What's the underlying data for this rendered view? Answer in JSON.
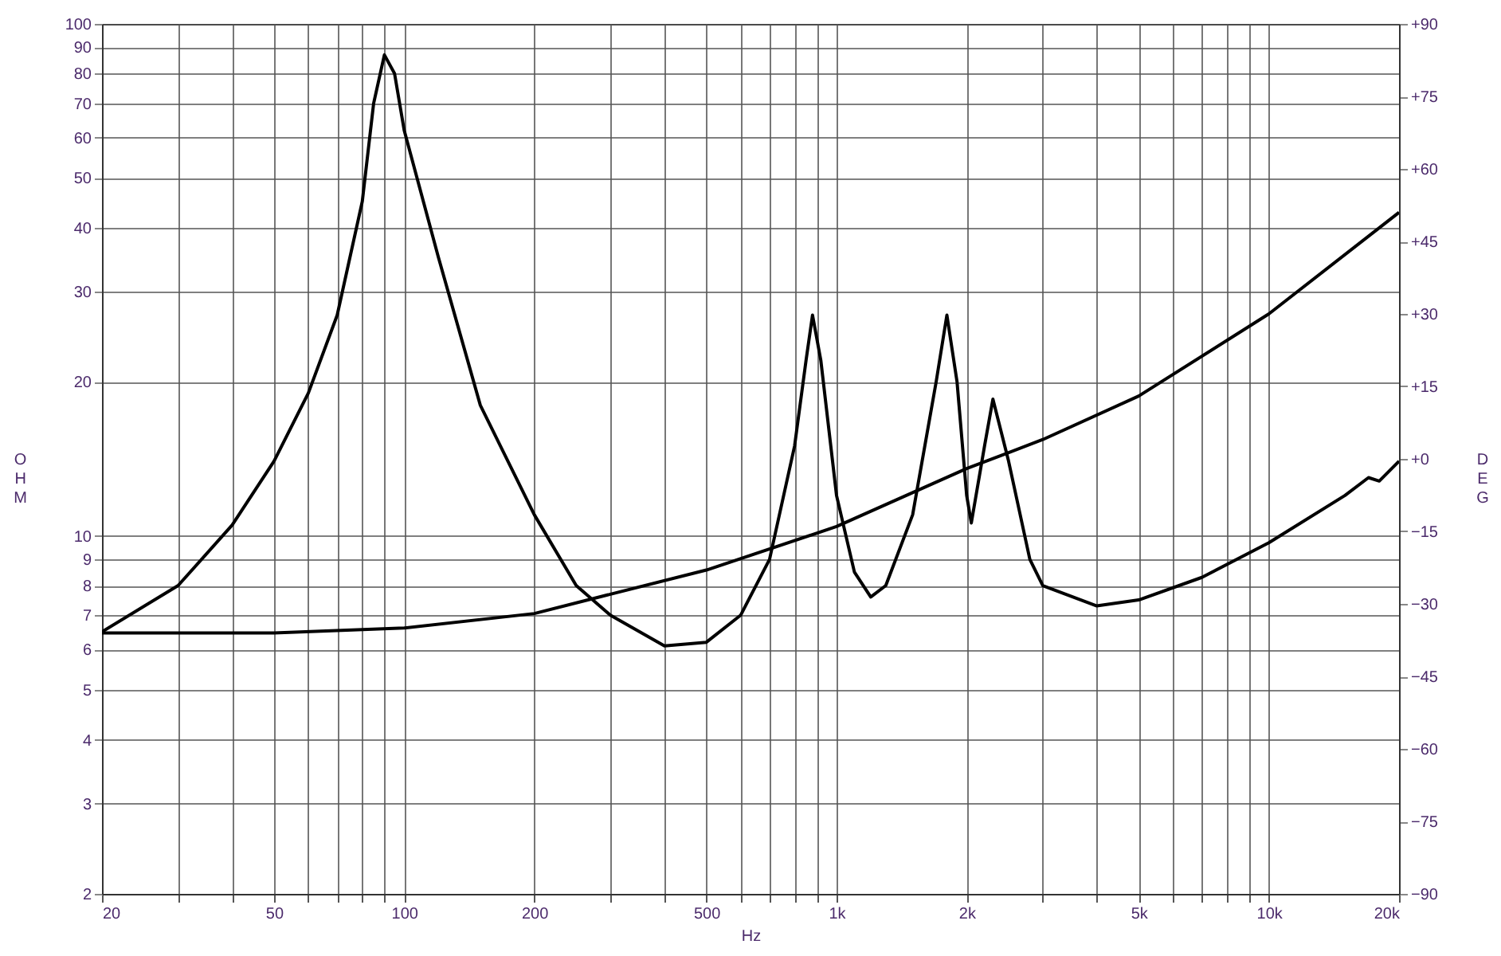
{
  "chart_data": {
    "type": "line",
    "xlabel": "Hz",
    "ylabel": "OHM",
    "y2label": "DEG",
    "log": "xy",
    "grid": true,
    "marker": "none",
    "line_style": "solid",
    "xlim": [
      20,
      20000
    ],
    "xticks": [
      20,
      {
        "value": 30,
        "label": null
      },
      {
        "value": 40,
        "label": null
      },
      50,
      {
        "value": 60,
        "label": null
      },
      {
        "value": 70,
        "label": null
      },
      {
        "value": 80,
        "label": null
      },
      {
        "value": 90,
        "label": null
      },
      100,
      200,
      {
        "value": 300,
        "label": null
      },
      {
        "value": 400,
        "label": null
      },
      500,
      {
        "value": 600,
        "label": null
      },
      {
        "value": 700,
        "label": null
      },
      {
        "value": 800,
        "label": null
      },
      {
        "value": 900,
        "label": null
      },
      {
        "value": 1000,
        "label": "1k"
      },
      {
        "value": 2000,
        "label": "2k"
      },
      {
        "value": 3000,
        "label": null
      },
      {
        "value": 4000,
        "label": null
      },
      {
        "value": 5000,
        "label": "5k"
      },
      {
        "value": 6000,
        "label": null
      },
      {
        "value": 7000,
        "label": null
      },
      {
        "value": 8000,
        "label": null
      },
      {
        "value": 9000,
        "label": null
      },
      {
        "value": 10000,
        "label": "10k"
      },
      {
        "value": 20000,
        "label": "20k"
      }
    ],
    "ylim": [
      2,
      100
    ],
    "yticks": [
      2,
      3,
      4,
      5,
      6,
      7,
      8,
      9,
      10,
      20,
      30,
      40,
      50,
      60,
      70,
      80,
      90,
      100
    ],
    "y2lim": [
      -90,
      90
    ],
    "y2ticks": [
      -90,
      -75,
      -60,
      -45,
      -30,
      -15,
      {
        "value": 0,
        "label": "+0"
      },
      {
        "value": 15,
        "label": "+15"
      },
      {
        "value": 30,
        "label": "+30"
      },
      {
        "value": 45,
        "label": "+45"
      },
      {
        "value": 60,
        "label": "+60"
      },
      {
        "value": 75,
        "label": "+75"
      },
      {
        "value": 90,
        "label": "+90"
      }
    ],
    "series": [
      {
        "color": "#000000",
        "x": [
          20,
          30,
          40,
          50,
          60,
          70,
          80,
          85,
          90,
          95,
          100,
          120,
          150,
          200,
          250,
          300,
          400,
          500,
          600,
          700,
          800,
          850,
          880,
          920,
          1000,
          1100,
          1200,
          1300,
          1500,
          1700,
          1800,
          1900,
          2000,
          2050,
          2200,
          2300,
          2500,
          2800,
          3000,
          4000,
          5000,
          7000,
          10000,
          15000,
          17000,
          18000,
          20000
        ],
        "values": [
          6.5,
          8,
          10.5,
          14,
          19,
          27,
          45,
          70,
          87,
          80,
          62,
          35,
          18,
          11,
          8,
          7,
          6.1,
          6.2,
          7,
          9,
          15,
          22,
          27,
          22,
          12,
          8.5,
          7.6,
          8,
          11,
          20,
          27,
          20,
          12,
          10.6,
          15,
          18.5,
          14,
          9,
          8,
          7.3,
          7.5,
          8.3,
          9.7,
          12,
          13,
          12.8,
          14
        ]
      },
      {
        "color": "#000000",
        "axis": "y2",
        "x": [
          20,
          50,
          100,
          200,
          300,
          500,
          1000,
          2000,
          3000,
          5000,
          10000,
          20000
        ],
        "values": [
          -36,
          -36,
          -35,
          -32,
          -28,
          -23,
          -14,
          -2,
          4,
          13,
          30,
          51
        ]
      }
    ]
  }
}
